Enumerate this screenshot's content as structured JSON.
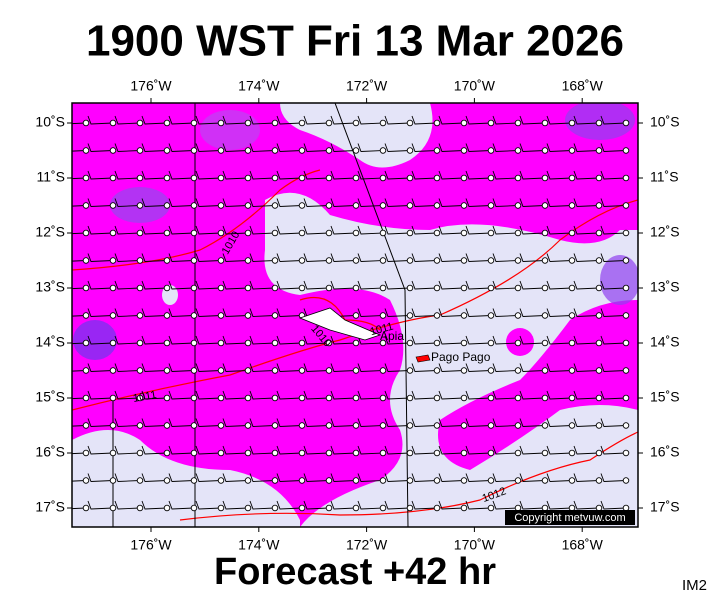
{
  "title": "1900 WST Fri 13 Mar 2026",
  "subtitle": "Forecast +42 hr",
  "corner_label": "IM2",
  "copyright": "Copyright metvuw.com",
  "lon_ticks": [
    {
      "value": 176,
      "label": "176˚W"
    },
    {
      "value": 174,
      "label": "174˚W"
    },
    {
      "value": 172,
      "label": "172˚W"
    },
    {
      "value": 170,
      "label": "170˚W"
    },
    {
      "value": 168,
      "label": "168˚W"
    }
  ],
  "lat_ticks": [
    {
      "value": 10,
      "label": "10˚S"
    },
    {
      "value": 11,
      "label": "11˚S"
    },
    {
      "value": 12,
      "label": "12˚S"
    },
    {
      "value": 13,
      "label": "13˚S"
    },
    {
      "value": 14,
      "label": "14˚S"
    },
    {
      "value": 15,
      "label": "15˚S"
    },
    {
      "value": 16,
      "label": "16˚S"
    },
    {
      "value": 17,
      "label": "17˚S"
    }
  ],
  "isobar_labels": [
    "1010",
    "1011",
    "1010",
    "1011",
    "1012"
  ],
  "places": [
    "Apia",
    "Pago Pago"
  ]
}
